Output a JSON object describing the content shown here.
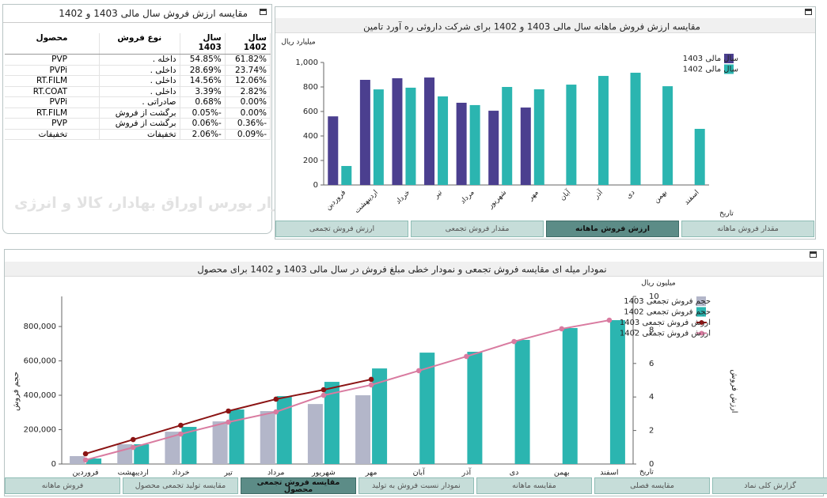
{
  "table_panel": {
    "title": "مقایسه ارزش فروش سال مالی 1403 و 1402",
    "headers": [
      "محصول",
      "نوع فروش",
      "سال 1403",
      "سال 1402"
    ],
    "rows": [
      [
        "PVP",
        "داخله .",
        "54.85%",
        "61.82%"
      ],
      [
        "PVPi",
        "داخلی .",
        "28.69%",
        "23.74%"
      ],
      [
        "RT.FILM",
        "داخلی .",
        "14.56%",
        "12.06%"
      ],
      [
        "RT.COAT",
        "داخلی .",
        "3.39%",
        "2.82%"
      ],
      [
        "PVPi",
        "صادراتی .",
        "0.68%",
        "0.00%"
      ],
      [
        "RT.FILM",
        "برگشت از فروش",
        "-0.05%",
        "0.00%"
      ],
      [
        "PVP",
        "برگشت از فروش",
        "-0.06%",
        "-0.36%"
      ],
      [
        "تخفیفات",
        "تخفیفات",
        "-2.06%",
        "-0.09%"
      ]
    ]
  },
  "watermark": "کارگزار بورس اوراق بهادار، کالا و انرژی",
  "top_tabs": [
    "ارزش فروش تجمعی",
    "مقدار فروش تجمعی",
    "ارزش فروش ماهانه",
    "مقدار فروش ماهانه"
  ],
  "top_active_tab": 2,
  "bottom_tabs": [
    "فروش ماهانه",
    "مقایسه تولید تجمعی محصول",
    "مقایسه فروش تجمعی محصول",
    "نمودار نسبت فروش به تولید",
    "مقایسه ماهانه",
    "مقایسه فصلی",
    "گزارش کلی نماد"
  ],
  "bottom_active_tab": 2,
  "chart_data": [
    {
      "type": "bar",
      "title": "مقایسه ارزش فروش ماهانه سال مالی 1403 و 1402 برای شرکت داروئی ره آورد تامین",
      "y_label": "میلیارد ریال",
      "x_label": "تاریخ",
      "categories": [
        "فروردین",
        "اردیبهشت",
        "خرداد",
        "تیر",
        "مرداد",
        "شهریور",
        "مهر",
        "آبان",
        "آذر",
        "دی",
        "بهمن",
        "اسفند"
      ],
      "series": [
        {
          "name": "سال مالی 1403",
          "color": "#4b3f8f",
          "values": [
            560,
            858,
            871,
            877,
            671,
            606,
            632,
            null,
            null,
            null,
            null,
            null
          ]
        },
        {
          "name": "سال مالی 1402",
          "color": "#2bb5b0",
          "values": [
            155,
            780,
            794,
            723,
            652,
            800,
            781,
            819,
            890,
            916,
            806,
            458
          ]
        }
      ],
      "ylim": [
        0,
        1000
      ],
      "yticks": [
        0,
        200,
        400,
        600,
        800,
        {
          "value": 1000,
          "label": "1,000"
        }
      ],
      "grid": false,
      "legend": "right"
    },
    {
      "type": "combo",
      "title": "نمودار میله ای مقایسه فروش تجمعی و نمودار خطی مبلغ فروش در سال مالی 1403 و 1402 برای محصول",
      "y_label": "حجم فروش",
      "y2_label": "ارزش فروش",
      "y2_unit": "میلیون ریال",
      "x_label": "تاریخ",
      "categories": [
        "فروردین",
        "اردیبهشت",
        "خرداد",
        "تیر",
        "مرداد",
        "شهریور",
        "مهر",
        "آبان",
        "آذر",
        "دی",
        "بهمن",
        "اسفند"
      ],
      "series": [
        {
          "name": "حجم فروش تجمعی 1403",
          "type": "bar",
          "color": "#b3b6c9",
          "values": [
            46000,
            115000,
            188000,
            248000,
            308000,
            349000,
            400000,
            null,
            null,
            null,
            null,
            null
          ]
        },
        {
          "name": "حجم فروش تجمعی 1402",
          "type": "bar",
          "color": "#2bb5b0",
          "values": [
            32000,
            115000,
            216000,
            317000,
            395000,
            478000,
            556000,
            648000,
            653000,
            722000,
            791000,
            837000
          ]
        },
        {
          "name": "ارزش فروش تجمعی 1403",
          "type": "line",
          "axis": "y2",
          "color": "#8b1414",
          "values": [
            0.61,
            1.46,
            2.31,
            3.16,
            3.87,
            4.43,
            5.05,
            null,
            null,
            null,
            null,
            null
          ]
        },
        {
          "name": "ارزش فروش تجمعی 1402",
          "type": "line",
          "axis": "y2",
          "color": "#d97ba0",
          "values": [
            0.24,
            0.99,
            1.79,
            2.5,
            3.11,
            4.1,
            4.72,
            5.57,
            6.42,
            7.31,
            8.07,
            8.58
          ]
        }
      ],
      "ylim": [
        0,
        975000
      ],
      "yticks": [
        0,
        {
          "value": 200000,
          "label": "200,000"
        },
        {
          "value": 400000,
          "label": "400,000"
        },
        {
          "value": 600000,
          "label": "600,000"
        },
        {
          "value": 800000,
          "label": "800,000"
        }
      ],
      "y2lim": [
        0,
        10
      ],
      "y2ticks": [
        0,
        2,
        4,
        6,
        8,
        10
      ],
      "grid": false,
      "legend": "right"
    }
  ]
}
